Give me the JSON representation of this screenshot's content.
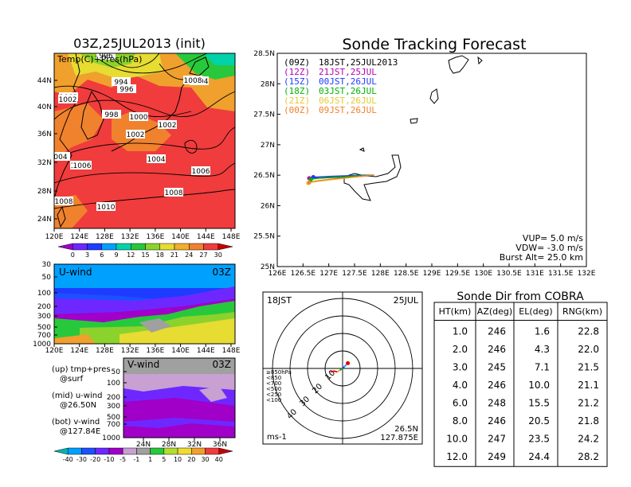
{
  "left_map": {
    "title": "03Z,25JUL2013 (init)",
    "label": "Temp(C)+Pres(hPa)",
    "lat_ticks": [
      "44N",
      "40N",
      "36N",
      "32N",
      "28N",
      "24N"
    ],
    "lon_ticks": [
      "120E",
      "124E",
      "128E",
      "132E",
      "136E",
      "140E",
      "144E",
      "148E"
    ],
    "isobar_labels": [
      "996",
      "994",
      "996",
      "1002",
      "998",
      "1000",
      "1002",
      "1002",
      "1004",
      "1006",
      "1004",
      "1006",
      "1008",
      "1010",
      "1008",
      "004",
      "1008",
      "1002",
      "1006"
    ],
    "colorbar_ticks": [
      "0",
      "3",
      "6",
      "9",
      "12",
      "15",
      "18",
      "21",
      "24",
      "27",
      "30"
    ],
    "colors": [
      "#a000c8",
      "#6e28ff",
      "#1e3cff",
      "#00a0ff",
      "#00d2aa",
      "#28c83c",
      "#8cd22d",
      "#e6dc32",
      "#f0af2d",
      "#f0822d",
      "#f03c3c",
      "#c80000"
    ]
  },
  "uwind": {
    "label": "U-wind",
    "time": "03Z",
    "p_ticks": [
      "30",
      "50",
      "100",
      "200",
      "300",
      "500",
      "700",
      "1000"
    ],
    "lon_ticks": [
      "120E",
      "124E",
      "128E",
      "132E",
      "136E",
      "140E",
      "144E",
      "148E"
    ]
  },
  "vwind": {
    "label": "V-wind",
    "time": "03Z",
    "p_ticks": [
      "50",
      "100",
      "200",
      "300",
      "500",
      "700",
      "1000"
    ],
    "lat_ticks": [
      "24N",
      "28N",
      "32N",
      "36N"
    ]
  },
  "legend_notes": [
    {
      "line1": "(up) tmp+pres",
      "line2": "@surf"
    },
    {
      "line1": "(mid) u-wind",
      "line2": "@26.50N"
    },
    {
      "line1": "(bot) v-wind",
      "line2": "@127.84E"
    }
  ],
  "wind_colorbar_ticks": [
    "-40",
    "-30",
    "-20",
    "-10",
    "-5",
    "-1",
    "1",
    "5",
    "10",
    "20",
    "30",
    "40"
  ],
  "wind_colors": [
    "#00b4b4",
    "#00a0ff",
    "#1e50ff",
    "#6e28ff",
    "#a000c8",
    "#c8a0d2",
    "#a0a0a0",
    "#28c83c",
    "#b4dc32",
    "#f0dc32",
    "#f0a02d",
    "#f03c3c",
    "#c80000"
  ],
  "tracking": {
    "title": "Sonde Tracking Forecast",
    "lat_ticks": [
      "28.5N",
      "28N",
      "27.5N",
      "27N",
      "26.5N",
      "26N",
      "25.5N",
      "25N"
    ],
    "lon_ticks": [
      "126E",
      "126.5E",
      "127E",
      "127.5E",
      "128E",
      "128.5E",
      "129E",
      "129.5E",
      "130E",
      "130.5E",
      "131E",
      "131.5E",
      "132E"
    ],
    "launches": [
      {
        "utc": "(09Z)",
        "jst": "18JST,25JUL2013",
        "color": "#000000"
      },
      {
        "utc": "(12Z)",
        "jst": "21JST,25JUL",
        "color": "#b400b4"
      },
      {
        "utc": "(15Z)",
        "jst": "00JST,26JUL",
        "color": "#1e3cff"
      },
      {
        "utc": "(18Z)",
        "jst": "03JST,26JUL",
        "color": "#00b400"
      },
      {
        "utc": "(21Z)",
        "jst": "06JST,26JUL",
        "color": "#e6c832"
      },
      {
        "utc": "(00Z)",
        "jst": "09JST,26JUL",
        "color": "#f0822d"
      }
    ],
    "params": [
      "VUP= 5.0 m/s",
      "VDW= -3.0 m/s",
      "Burst Alt= 25.0 km"
    ]
  },
  "polar": {
    "time": "18JST",
    "date": "25JUL",
    "ring_labels": [
      "10",
      "20",
      "30",
      "40"
    ],
    "pressure_legend": [
      "≥850hPa",
      "<850",
      "<700",
      "<500",
      "<250",
      "<100"
    ],
    "pressure_colors": [
      "#dc0000",
      "#f0a02d",
      "#00b400",
      "#1e3cff",
      "#00a0ff",
      "#8c8cff"
    ],
    "unit": "ms-1",
    "location_lat": "26.5N",
    "location_lon": "127.875E"
  },
  "sonde_table": {
    "title": "Sonde Dir from COBRA",
    "headers": [
      "HT(km)",
      "AZ(deg)",
      "EL(deg)",
      "RNG(km)"
    ],
    "rows": [
      [
        "1.0",
        "246",
        "1.6",
        "22.8"
      ],
      [
        "2.0",
        "246",
        "4.3",
        "22.0"
      ],
      [
        "3.0",
        "245",
        "7.1",
        "21.5"
      ],
      [
        "4.0",
        "246",
        "10.0",
        "21.1"
      ],
      [
        "6.0",
        "248",
        "15.5",
        "21.2"
      ],
      [
        "8.0",
        "246",
        "20.5",
        "21.8"
      ],
      [
        "10.0",
        "247",
        "23.5",
        "24.2"
      ],
      [
        "12.0",
        "249",
        "24.4",
        "28.2"
      ]
    ]
  },
  "chart_data": [
    {
      "type": "heatmap",
      "title": "03Z,25JUL2013 (init)",
      "label": "Temp(C)+Pres(hPa)",
      "xlabel": "",
      "ylabel": "",
      "xlim": [
        "120E",
        "150E"
      ],
      "ylim": [
        "22N",
        "48N"
      ],
      "colorbar_ticks": [
        0,
        3,
        6,
        9,
        12,
        15,
        18,
        21,
        24,
        27,
        30
      ]
    },
    {
      "type": "heatmap",
      "label": "U-wind",
      "time": "03Z",
      "y_ticks_hPa": [
        30,
        50,
        100,
        200,
        300,
        500,
        700,
        1000
      ]
    },
    {
      "type": "heatmap",
      "label": "V-wind",
      "time": "03Z",
      "y_ticks_hPa": [
        50,
        100,
        200,
        300,
        500,
        700,
        1000
      ],
      "colorbar_ticks": [
        -40,
        -30,
        -20,
        -10,
        -5,
        -1,
        1,
        5,
        10,
        20,
        30,
        40
      ]
    },
    {
      "type": "line",
      "title": "Sonde Tracking Forecast",
      "xlim": [
        126.0,
        132.0
      ],
      "ylim": [
        25.0,
        28.5
      ],
      "series": [
        {
          "name": "(09Z) 18JST,25JUL2013",
          "x": [
            127.875,
            127.6,
            127.3,
            127.0,
            126.75,
            126.65
          ],
          "y": [
            26.5,
            26.48,
            26.47,
            26.46,
            26.45,
            26.44
          ]
        },
        {
          "name": "(12Z) 21JST,25JUL",
          "x": [
            127.875,
            127.55,
            127.25,
            126.95,
            126.7,
            126.62
          ],
          "y": [
            26.5,
            26.49,
            26.48,
            26.47,
            26.46,
            26.45
          ]
        },
        {
          "name": "(15Z) 00JST,26JUL",
          "x": [
            127.875,
            127.6,
            127.3,
            127.0,
            126.78,
            126.7
          ],
          "y": [
            26.5,
            26.5,
            26.49,
            26.48,
            26.47,
            26.47
          ]
        },
        {
          "name": "(18Z) 03JST,26JUL",
          "x": [
            127.875,
            127.55,
            127.2,
            126.9,
            126.72,
            126.65
          ],
          "y": [
            26.5,
            26.49,
            26.47,
            26.46,
            26.44,
            26.43
          ]
        },
        {
          "name": "(21Z) 06JST,26JUL",
          "x": [
            127.875,
            127.5,
            127.1,
            126.8,
            126.63,
            126.6
          ],
          "y": [
            26.5,
            26.47,
            26.43,
            26.4,
            26.38,
            26.37
          ]
        },
        {
          "name": "(00Z) 09JST,26JUL",
          "x": [
            127.875,
            127.5,
            127.1,
            126.8,
            126.65,
            126.62
          ],
          "y": [
            26.5,
            26.47,
            26.44,
            26.41,
            26.39,
            26.38
          ]
        }
      ]
    },
    {
      "type": "line",
      "title": "18JST 25JUL",
      "unit": "ms-1",
      "ring_values": [
        10,
        20,
        30,
        40
      ],
      "hodograph_u": [
        -7,
        -5,
        -3,
        -1.5,
        0,
        1,
        2,
        3
      ],
      "hodograph_v": [
        -2,
        -1.5,
        -2,
        -1,
        0,
        1,
        2,
        3
      ]
    },
    {
      "type": "table",
      "title": "Sonde Dir from COBRA",
      "headers": [
        "HT(km)",
        "AZ(deg)",
        "EL(deg)",
        "RNG(km)"
      ],
      "rows": [
        [
          1.0,
          246,
          1.6,
          22.8
        ],
        [
          2.0,
          246,
          4.3,
          22.0
        ],
        [
          3.0,
          245,
          7.1,
          21.5
        ],
        [
          4.0,
          246,
          10.0,
          21.1
        ],
        [
          6.0,
          248,
          15.5,
          21.2
        ],
        [
          8.0,
          246,
          20.5,
          21.8
        ],
        [
          10.0,
          247,
          23.5,
          24.2
        ],
        [
          12.0,
          249,
          24.4,
          28.2
        ]
      ]
    }
  ]
}
